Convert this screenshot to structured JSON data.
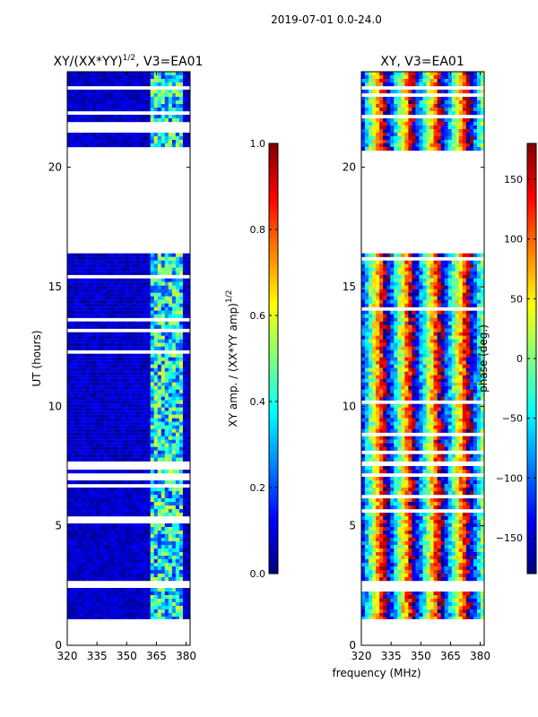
{
  "figure": {
    "suptitle": "2019-07-01 0.0-24.0",
    "xlabel": "frequency (MHz)"
  },
  "chart_data": [
    {
      "type": "heatmap",
      "title": "XY/(XX*YY)",
      "title_sup": "1/2",
      "title_suffix": ", V3=EA01",
      "ylabel": "UT (hours)",
      "xlim": [
        320,
        382
      ],
      "ylim": [
        0,
        24
      ],
      "xticks": [
        320,
        335,
        350,
        365,
        380
      ],
      "yticks": [
        0,
        5,
        10,
        15,
        20
      ],
      "colormap": "jet",
      "colorbar": {
        "label": "XY amp. / (XX*YY amp)",
        "label_sup": "1/2",
        "range": [
          0.0,
          1.0
        ],
        "ticks": [
          "0.0",
          "0.2",
          "0.4",
          "0.6",
          "0.8",
          "1.0"
        ]
      },
      "data_hours": [
        [
          1.1,
          2.4
        ],
        [
          2.7,
          7.5
        ],
        [
          7.7,
          16.4
        ],
        [
          20.7,
          24.0
        ]
      ],
      "rfi_band_mhz": [
        362,
        378
      ]
    },
    {
      "type": "heatmap",
      "title": "XY, V3=EA01",
      "ylabel": "",
      "xlim": [
        320,
        382
      ],
      "ylim": [
        0,
        24
      ],
      "xticks": [
        320,
        335,
        350,
        365,
        380
      ],
      "yticks": [
        0,
        5,
        10,
        15,
        20
      ],
      "colormap": "jet",
      "colorbar": {
        "label": "phase (deg.)",
        "range": [
          -180,
          180
        ],
        "ticks": [
          "−150",
          "−100",
          "−50",
          "0",
          "50",
          "100",
          "150"
        ]
      },
      "data_hours": [
        [
          1.1,
          2.4
        ],
        [
          2.7,
          7.5
        ],
        [
          7.7,
          16.4
        ],
        [
          20.7,
          24.0
        ]
      ]
    }
  ],
  "colors": {
    "jet": [
      "#00007f",
      "#0000ff",
      "#007fff",
      "#00ffff",
      "#7fff7f",
      "#ffff00",
      "#ff7f00",
      "#ff0000",
      "#7f0000"
    ]
  }
}
